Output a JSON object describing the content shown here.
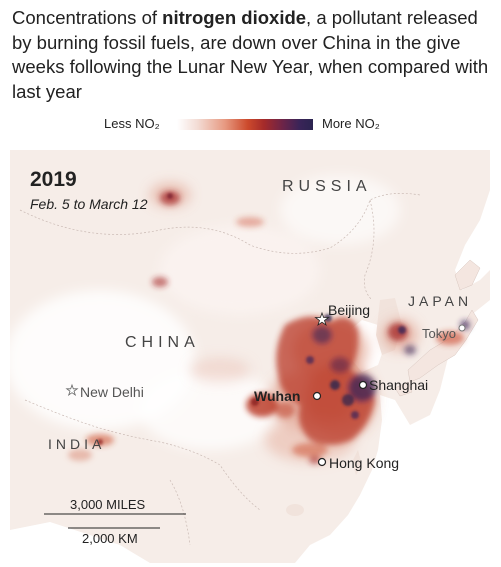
{
  "headline": {
    "pre": "Concentrations of ",
    "bold": "nitrogen dioxide",
    "post": ", a pollutant released by burning fossil fuels, are down over China in the give weeks following the Lunar New Year, when compared with last year"
  },
  "legend": {
    "less": "Less NO₂",
    "more": "More NO₂",
    "colors": [
      "#ffffff",
      "#e79a82",
      "#cc4a2c",
      "#a52a2a",
      "#6b2449",
      "#2b2450"
    ]
  },
  "map": {
    "year": "2019",
    "date_range": "Feb. 5 to March 12",
    "regions": {
      "russia": "RUSSIA",
      "china": "CHINA",
      "japan": "JAPAN",
      "india": "INDIA"
    },
    "cities": {
      "beijing": "Beijing",
      "tokyo": "Tokyo",
      "shanghai": "Shanghai",
      "wuhan": "Wuhan",
      "new_delhi": "New Delhi",
      "hong_kong": "Hong Kong"
    },
    "scale": {
      "miles": "3,000 MILES",
      "km": "2,000 KM"
    }
  }
}
